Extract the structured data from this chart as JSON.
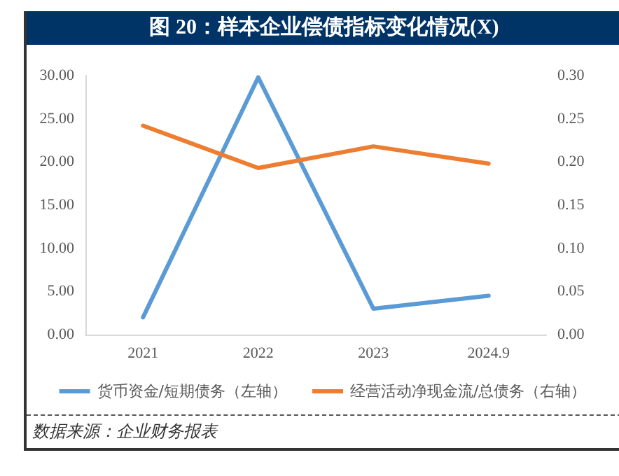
{
  "chart_data": {
    "type": "line",
    "title": "图 20：样本企业偿债指标变化情况(X)",
    "categories": [
      "2021",
      "2022",
      "2023",
      "2024.9"
    ],
    "series": [
      {
        "name": "货币资金/短期债务（左轴）",
        "color": "#5b9bd5",
        "values": [
          2.0,
          29.8,
          3.0,
          4.5
        ]
      },
      {
        "name": "经营活动净现金流/总债务（右轴）",
        "color": "#ed7d31",
        "values": [
          0.242,
          0.193,
          0.218,
          0.198
        ],
        "axis": "y2"
      }
    ],
    "ylim": [
      0,
      30
    ],
    "yticks": [
      {
        "value": 0,
        "label": "0.00"
      },
      {
        "value": 5,
        "label": "5.00"
      },
      {
        "value": 10,
        "label": "10.00"
      },
      {
        "value": 15,
        "label": "15.00"
      },
      {
        "value": 20,
        "label": "20.00"
      },
      {
        "value": 25,
        "label": "25.00"
      },
      {
        "value": 30,
        "label": "30.00"
      }
    ],
    "y2lim": [
      0,
      0.3
    ],
    "y2ticks": [
      {
        "value": 0,
        "label": "0.00"
      },
      {
        "value": 0.05,
        "label": "0.05"
      },
      {
        "value": 0.1,
        "label": "0.10"
      },
      {
        "value": 0.15,
        "label": "0.15"
      },
      {
        "value": 0.2,
        "label": "0.20"
      },
      {
        "value": 0.25,
        "label": "0.25"
      },
      {
        "value": 0.3,
        "label": "0.30"
      }
    ],
    "grid": false,
    "legend": "bottom",
    "marker": "none",
    "line_style": "solid",
    "annotations": [
      "数据来源：企业财务报表"
    ]
  }
}
